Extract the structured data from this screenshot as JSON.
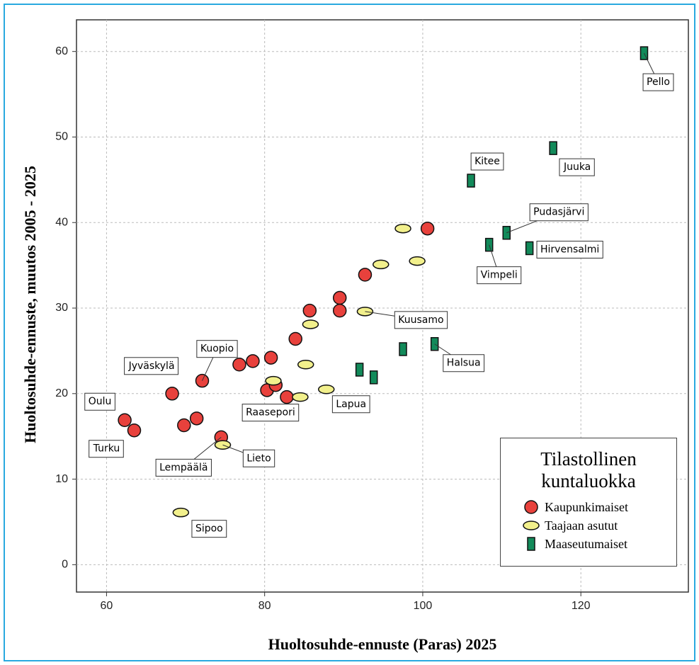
{
  "chart_data": {
    "type": "scatter",
    "xlabel": "Huoltosuhde-ennuste (Paras) 2025",
    "ylabel": "Huoltosuhde-ennuste, muutos 2005 - 2025",
    "legend_title": "Tilastollinen kuntaluokka",
    "xlim": [
      56.2,
      133.6
    ],
    "ylim": [
      -3.2,
      63.7
    ],
    "xticks": [
      60,
      80,
      100,
      120
    ],
    "yticks": [
      0,
      10,
      20,
      30,
      40,
      50,
      60
    ],
    "grid": true,
    "legend": "lower right",
    "series": [
      {
        "name": "Kaupunkimaiset",
        "color": "#e8413c",
        "marker": "circle",
        "x": [
          62.3,
          63.5,
          68.3,
          72.1,
          69.8,
          71.4,
          74.5,
          76.8,
          78.5,
          80.8,
          80.3,
          81.4,
          82.8,
          83.9,
          85.7,
          89.5,
          89.5,
          92.7,
          100.6
        ],
        "values": [
          16.9,
          15.7,
          20.0,
          21.5,
          16.3,
          17.1,
          14.9,
          23.4,
          23.8,
          24.2,
          20.4,
          21.0,
          19.6,
          26.4,
          29.7,
          31.2,
          29.7,
          33.9,
          39.3
        ],
        "labels": [
          "Oulu",
          "Turku",
          "Jyväskylä",
          "Kuopio",
          null,
          null,
          "Lempäälä",
          null,
          null,
          null,
          null,
          null,
          "Raasepori",
          null,
          null,
          null,
          null,
          null,
          null
        ]
      },
      {
        "name": "Taajaan asutut",
        "color": "#f2f08c",
        "marker": "ellipse",
        "x": [
          69.4,
          74.7,
          81.1,
          84.5,
          85.2,
          85.8,
          87.8,
          92.7,
          94.7,
          97.5,
          99.3
        ],
        "values": [
          6.1,
          14.0,
          21.5,
          19.6,
          23.4,
          28.1,
          20.5,
          29.6,
          35.1,
          39.3,
          35.5
        ],
        "labels": [
          "Sipoo",
          "Lieto",
          null,
          null,
          null,
          null,
          "Lapua",
          "Kuusamo",
          null,
          null,
          null
        ]
      },
      {
        "name": "Maaseutumaiset",
        "color": "#128a5a",
        "marker": "rect",
        "x": [
          128.0,
          116.5,
          106.1,
          110.6,
          108.4,
          113.5,
          101.5,
          97.5,
          92.0,
          93.8
        ],
        "values": [
          59.8,
          48.7,
          44.9,
          38.8,
          37.4,
          37.0,
          25.8,
          25.2,
          22.8,
          21.9
        ],
        "labels": [
          "Pello",
          "Juuka",
          "Kitee",
          "Pudasjärvi",
          "Vimpeli",
          "Hirvensalmi",
          "Halsua",
          null,
          null,
          null
        ]
      }
    ]
  }
}
